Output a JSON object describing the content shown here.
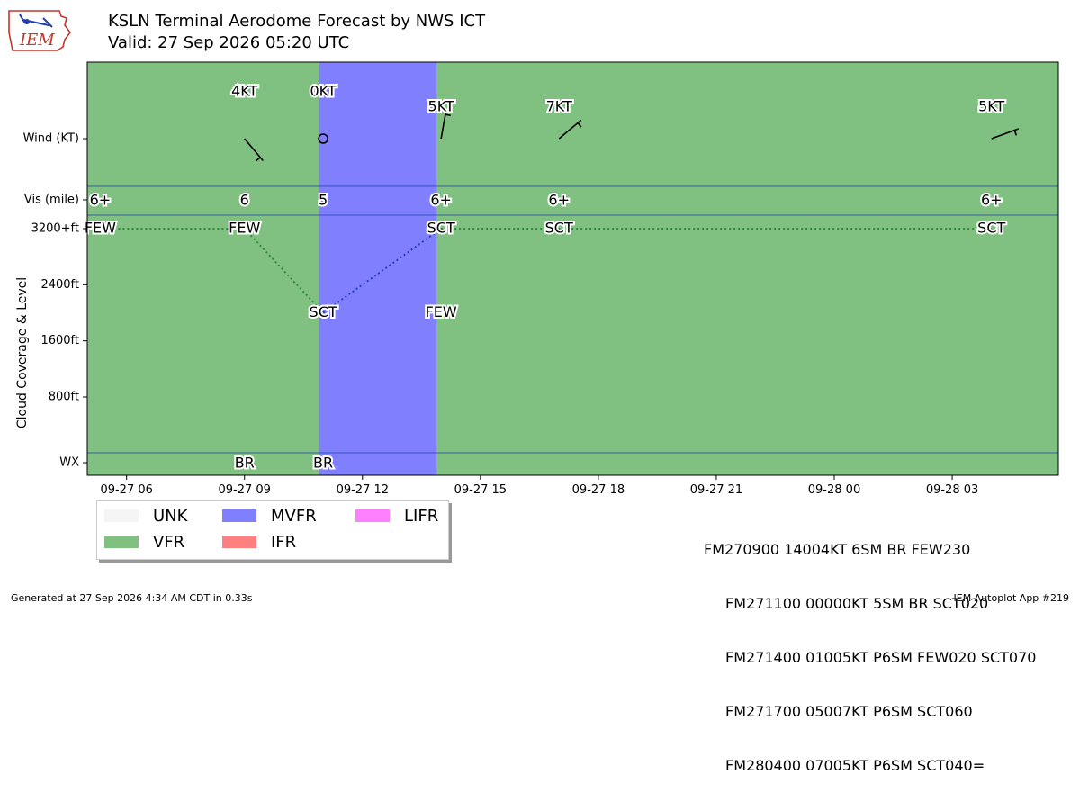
{
  "header": {
    "title": "KSLN Terminal Aerodome Forecast by NWS ICT",
    "subtitle": "Valid: 27 Sep 2026 05:20 UTC",
    "logo_text": "IEM"
  },
  "chart_data": {
    "type": "timeline",
    "y_axis_labels": [
      "Wind (KT)",
      "Vis (mile)",
      "3200+ft",
      "2400ft",
      "1600ft",
      "800ft",
      "WX"
    ],
    "ylabel": "Cloud Coverage & Level",
    "x_ticks": [
      "09-27 06",
      "09-27 09",
      "09-27 12",
      "09-27 15",
      "09-27 18",
      "09-27 21",
      "09-28 00",
      "09-28 03"
    ],
    "x_tick_hours": [
      6,
      9,
      12,
      15,
      18,
      21,
      24,
      27
    ],
    "x_range_hours": [
      5.0,
      29.7
    ],
    "cloud_range_ft": [
      0,
      3600
    ],
    "category_colors": {
      "UNK": "#f5f5f5",
      "VFR": "#80c080",
      "MVFR": "#8080ff",
      "IFR": "#ff8080",
      "LIFR": "#ff80ff"
    },
    "category_spans": [
      {
        "start": 5.0,
        "end": 10.9,
        "category": "VFR"
      },
      {
        "start": 10.9,
        "end": 13.9,
        "category": "MVFR"
      },
      {
        "start": 13.9,
        "end": 29.7,
        "category": "VFR"
      }
    ],
    "wind": [
      {
        "t": 6.0,
        "dir": null,
        "speed": null,
        "label": "6+",
        "is_vis": true
      },
      {
        "t": 9.0,
        "dir": 140,
        "speed": 4,
        "label": "4KT"
      },
      {
        "t": 11.0,
        "dir": 0,
        "speed": 0,
        "label": "0KT"
      },
      {
        "t": 14.0,
        "dir": 10,
        "speed": 5,
        "label": "5KT"
      },
      {
        "t": 17.0,
        "dir": 50,
        "speed": 7,
        "label": "7KT"
      },
      {
        "t": 28.0,
        "dir": 70,
        "speed": 5,
        "label": "5KT"
      }
    ],
    "visibility": [
      {
        "t": 5.33,
        "label": "6+"
      },
      {
        "t": 9.0,
        "label": "6"
      },
      {
        "t": 11.0,
        "label": "5"
      },
      {
        "t": 14.0,
        "label": "6+"
      },
      {
        "t": 17.0,
        "label": "6+"
      },
      {
        "t": 28.0,
        "label": "6+"
      }
    ],
    "clouds": [
      {
        "t": 5.33,
        "level_ft": 3200,
        "label": "FEW"
      },
      {
        "t": 9.0,
        "level_ft": 3200,
        "label": "FEW"
      },
      {
        "t": 11.0,
        "level_ft": 2000,
        "label": "SCT"
      },
      {
        "t": 14.0,
        "level_ft": 2000,
        "label": "FEW"
      },
      {
        "t": 14.0,
        "level_ft": 3200,
        "label": "SCT"
      },
      {
        "t": 17.0,
        "level_ft": 3200,
        "label": "SCT"
      },
      {
        "t": 28.0,
        "level_ft": 3200,
        "label": "SCT"
      }
    ],
    "cloud_lines": [
      {
        "from": [
          5.33,
          3200
        ],
        "to": [
          9.0,
          3200
        ],
        "color": "#2e8b3a"
      },
      {
        "from": [
          9.0,
          3200
        ],
        "to": [
          11.0,
          2000
        ],
        "color": "#2e8b3a"
      },
      {
        "from": [
          11.0,
          2000
        ],
        "to": [
          14.0,
          3200
        ],
        "color": "#2a3fb0"
      },
      {
        "from": [
          14.0,
          3200
        ],
        "to": [
          28.0,
          3200
        ],
        "color": "#2e8b3a"
      }
    ],
    "weather": [
      {
        "t": 9.0,
        "label": "BR"
      },
      {
        "t": 11.0,
        "label": "BR"
      }
    ]
  },
  "legend": {
    "items": [
      {
        "label": "UNK",
        "color": "#f5f5f5"
      },
      {
        "label": "MVFR",
        "color": "#8080ff"
      },
      {
        "label": "LIFR",
        "color": "#ff80ff"
      },
      {
        "label": "VFR",
        "color": "#80c080"
      },
      {
        "label": "IFR",
        "color": "#ff8080"
      }
    ]
  },
  "taf": {
    "lines": [
      "FM270900 14004KT 6SM BR FEW230",
      "FM271100 00000KT 5SM BR SCT020",
      "FM271400 01005KT P6SM FEW020 SCT070",
      "FM271700 05007KT P6SM SCT060",
      "FM280400 07005KT P6SM SCT040="
    ]
  },
  "footer": {
    "left": "Generated at 27 Sep 2026 4:34 AM CDT in 0.33s",
    "right": "IEM Autoplot App #219"
  }
}
